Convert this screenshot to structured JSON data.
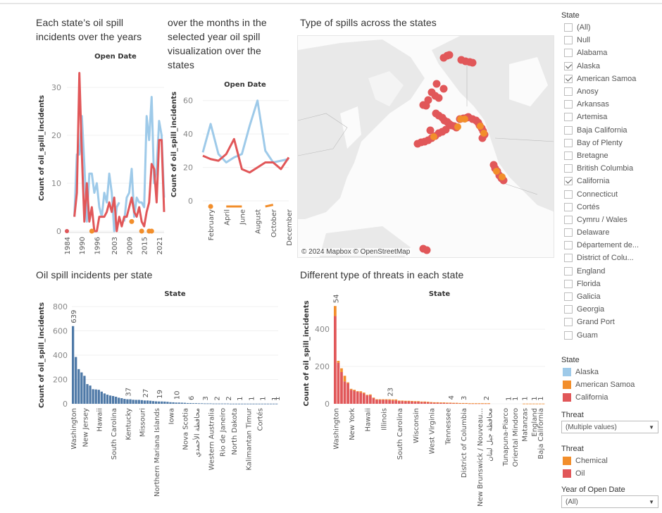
{
  "titles": {
    "yearly": [
      "Each state’s oil spill",
      "incidents over the years"
    ],
    "monthly": [
      "over the months in the",
      "selected year oil spill",
      "visualization over the",
      "states"
    ],
    "map": "Type of spills across the states",
    "per_state": "Oil spill incidents per state",
    "threats": "Different type of threats in each state"
  },
  "map": {
    "credit": "© 2024 Mapbox  © OpenStreetMap"
  },
  "filters": {
    "state": {
      "label": "State",
      "items": [
        {
          "label": "(All)",
          "checked": false
        },
        {
          "label": "Null",
          "checked": false
        },
        {
          "label": "Alabama",
          "checked": false
        },
        {
          "label": "Alaska",
          "checked": true
        },
        {
          "label": "American Samoa",
          "checked": true
        },
        {
          "label": "Anosy",
          "checked": false
        },
        {
          "label": "Arkansas",
          "checked": false
        },
        {
          "label": "Artemisa",
          "checked": false
        },
        {
          "label": "Baja California",
          "checked": false
        },
        {
          "label": "Bay of Plenty",
          "checked": false
        },
        {
          "label": "Bretagne",
          "checked": false
        },
        {
          "label": "British Columbia",
          "checked": false
        },
        {
          "label": "California",
          "checked": true
        },
        {
          "label": "Connecticut",
          "checked": false
        },
        {
          "label": "Cortés",
          "checked": false
        },
        {
          "label": "Cymru / Wales",
          "checked": false
        },
        {
          "label": "Delaware",
          "checked": false
        },
        {
          "label": "Département de...",
          "checked": false
        },
        {
          "label": "District of Colu...",
          "checked": false
        },
        {
          "label": "England",
          "checked": false
        },
        {
          "label": "Florida",
          "checked": false
        },
        {
          "label": "Galicia",
          "checked": false
        },
        {
          "label": "Georgia",
          "checked": false
        },
        {
          "label": "Grand Port",
          "checked": false
        },
        {
          "label": "Guam",
          "checked": false
        }
      ]
    },
    "state_legend": {
      "label": "State",
      "items": [
        {
          "label": "Alaska",
          "color": "#9ecae9"
        },
        {
          "label": "American Samoa",
          "color": "#f28e2b"
        },
        {
          "label": "California",
          "color": "#e15759"
        }
      ]
    },
    "threat": {
      "label": "Threat",
      "value": "(Multiple values)"
    },
    "threat_legend": {
      "label": "Threat",
      "items": [
        {
          "label": "Chemical",
          "color": "#f28e2b"
        },
        {
          "label": "Oil",
          "color": "#e15759"
        }
      ]
    },
    "year": {
      "label": "Year of Open Date",
      "value": "(All)"
    }
  },
  "chart_data": [
    {
      "id": "yearly",
      "type": "line",
      "title": "Open Date",
      "xlabel": "",
      "ylabel": "Count of oil_spill_incidents",
      "x": [
        1984,
        1985,
        1986,
        1987,
        1988,
        1989,
        1990,
        1991,
        1992,
        1993,
        1994,
        1995,
        1996,
        1997,
        1998,
        1999,
        2000,
        2001,
        2002,
        2003,
        2004,
        2005,
        2006,
        2007,
        2008,
        2009,
        2010,
        2011,
        2012,
        2013,
        2014,
        2015,
        2016,
        2017,
        2018,
        2019,
        2020,
        2021,
        2022,
        2023
      ],
      "xticks": [
        "1984",
        "1990",
        "1996",
        "2003",
        "2009",
        "2015",
        "2021"
      ],
      "yticks": [
        0,
        10,
        20,
        30
      ],
      "ylim": [
        0,
        35
      ],
      "series": [
        {
          "name": "Alaska",
          "color": "#9ecae9",
          "values": [
            0,
            null,
            null,
            3,
            16,
            16,
            24,
            14,
            2,
            12,
            12,
            8,
            10,
            5,
            3,
            8,
            6,
            12,
            8,
            0,
            5,
            6,
            null,
            2,
            7,
            8,
            13,
            3,
            7,
            6,
            6,
            5,
            24,
            19,
            28,
            10,
            13,
            23,
            20,
            7
          ]
        },
        {
          "name": "California",
          "color": "#e15759",
          "values": [
            0,
            null,
            null,
            3,
            8,
            33,
            16,
            2,
            10,
            2,
            5,
            0,
            0,
            3,
            3,
            3,
            4,
            6,
            4,
            7,
            0,
            3,
            1,
            3,
            3,
            5,
            7,
            4,
            3,
            5,
            2,
            1,
            4,
            6,
            14,
            13,
            6,
            19,
            19,
            4
          ]
        },
        {
          "name": "American Samoa",
          "color": "#f28e2b",
          "points": [
            [
              1994,
              0
            ],
            [
              2010,
              2
            ],
            [
              2014,
              0
            ],
            [
              2017,
              0
            ],
            [
              2018,
              0
            ]
          ]
        }
      ]
    },
    {
      "id": "monthly",
      "type": "line",
      "title": "Open Date",
      "ylabel": "Count of oil_spill_incidents",
      "x": [
        "January",
        "February",
        "March",
        "April",
        "May",
        "June",
        "July",
        "August",
        "September",
        "October",
        "November",
        "December"
      ],
      "xticks": [
        "February",
        "April",
        "June",
        "August",
        "October",
        "December"
      ],
      "yticks": [
        0,
        20,
        40,
        60
      ],
      "ylim": [
        0,
        62
      ],
      "series": [
        {
          "name": "Alaska",
          "color": "#9ecae9",
          "values": [
            29,
            46,
            28,
            23,
            26,
            28,
            45,
            60,
            30,
            23,
            24,
            25
          ]
        },
        {
          "name": "California",
          "color": "#e15759",
          "values": [
            27,
            25,
            24,
            28,
            37,
            19,
            17,
            20,
            23,
            23,
            19,
            26
          ]
        },
        {
          "name": "American Samoa",
          "color": "#f28e2b",
          "values": [
            null,
            0,
            null,
            0,
            0,
            0,
            null,
            null,
            0,
            1,
            null,
            null
          ]
        }
      ]
    },
    {
      "id": "per_state",
      "type": "bar",
      "title": "State",
      "ylabel": "Count of oil_spill_incidents",
      "yticks": [
        0,
        200,
        400,
        600,
        800
      ],
      "ylim": [
        0,
        800
      ],
      "color": "#4e79a7",
      "values": [
        639,
        385,
        285,
        258,
        230,
        162,
        150,
        120,
        118,
        115,
        100,
        85,
        75,
        68,
        64,
        58,
        50,
        46,
        40,
        37,
        37,
        33,
        32,
        32,
        30,
        27,
        27,
        25,
        22,
        20,
        19,
        19,
        18,
        16,
        13,
        12,
        10,
        10,
        9,
        8,
        6,
        6,
        5,
        5,
        4,
        4,
        3,
        3,
        3,
        2,
        2,
        2,
        2,
        2,
        2,
        1,
        1,
        1,
        1,
        1,
        1,
        1,
        1,
        1,
        1,
        1,
        1,
        1,
        1,
        1,
        1,
        1
      ],
      "data_labels": [
        {
          "index": 0,
          "text": "639"
        },
        {
          "index": 19,
          "text": "37"
        },
        {
          "index": 25,
          "text": "27"
        },
        {
          "index": 30,
          "text": "19"
        },
        {
          "index": 36,
          "text": "10"
        },
        {
          "index": 41,
          "text": "6"
        },
        {
          "index": 46,
          "text": "3"
        },
        {
          "index": 50,
          "text": "2"
        },
        {
          "index": 54,
          "text": "2"
        },
        {
          "index": 58,
          "text": "1"
        },
        {
          "index": 62,
          "text": "1"
        },
        {
          "index": 66,
          "text": "1"
        },
        {
          "index": 70,
          "text": "1"
        },
        {
          "index": 71,
          "text": "1"
        }
      ],
      "xticks": [
        {
          "index": 0,
          "text": "Washington"
        },
        {
          "index": 4,
          "text": "New Jersey"
        },
        {
          "index": 9,
          "text": "Hawaii"
        },
        {
          "index": 14,
          "text": "South Carolina"
        },
        {
          "index": 19,
          "text": "Kentucky"
        },
        {
          "index": 24,
          "text": "Missouri"
        },
        {
          "index": 29,
          "text": "Northern Mariana Islands"
        },
        {
          "index": 34,
          "text": "Iowa"
        },
        {
          "index": 39,
          "text": "Nova Scotia"
        },
        {
          "index": 43,
          "text": "محافظة الأحمدي"
        },
        {
          "index": 48,
          "text": "Western Australia"
        },
        {
          "index": 52,
          "text": "Rio de Janeiro"
        },
        {
          "index": 56,
          "text": "North Dakota"
        },
        {
          "index": 61,
          "text": "Kalimantan Timur"
        },
        {
          "index": 65,
          "text": "Cortés"
        }
      ]
    },
    {
      "id": "threats",
      "type": "bar",
      "stacked": true,
      "title": "State",
      "ylabel": "Count of oil_spill_incidents",
      "yticks": [
        0,
        200,
        400
      ],
      "ylim": [
        0,
        540
      ],
      "series": [
        {
          "name": "Oil",
          "color": "#e15759",
          "values": [
            470,
            220,
            170,
            120,
            110,
            75,
            70,
            65,
            60,
            55,
            45,
            45,
            30,
            22,
            22,
            22,
            22,
            20,
            18,
            18,
            15,
            15,
            14,
            14,
            13,
            12,
            12,
            10,
            10,
            9,
            8,
            7,
            7,
            6,
            6,
            5,
            5,
            4,
            4,
            3,
            3,
            3,
            2,
            2,
            2,
            2,
            2,
            2,
            2,
            0,
            0,
            0,
            0,
            0,
            0,
            0,
            0,
            0,
            0,
            0,
            0,
            0,
            0,
            0,
            0,
            0
          ]
        },
        {
          "name": "Chemical",
          "color": "#f28e2b",
          "values": [
            54,
            10,
            20,
            30,
            5,
            5,
            5,
            3,
            7,
            5,
            3,
            5,
            3,
            2,
            2,
            2,
            2,
            4,
            5,
            5,
            2,
            2,
            2,
            2,
            2,
            2,
            2,
            2,
            2,
            2,
            1,
            1,
            1,
            1,
            1,
            1,
            1,
            1,
            1,
            1,
            1,
            1,
            1,
            1,
            1,
            1,
            1,
            1,
            1,
            0,
            0,
            0,
            0,
            0,
            0,
            0,
            0,
            0,
            0,
            1,
            1,
            1,
            1,
            1,
            1,
            1
          ]
        }
      ],
      "data_labels": [
        {
          "index": 0,
          "text": "54"
        },
        {
          "index": 17,
          "text": "23"
        },
        {
          "index": 36,
          "text": "4"
        },
        {
          "index": 40,
          "text": "3"
        },
        {
          "index": 47,
          "text": "2"
        },
        {
          "index": 54,
          "text": "1"
        },
        {
          "index": 56,
          "text": "1"
        },
        {
          "index": 59,
          "text": "1"
        },
        {
          "index": 62,
          "text": "1"
        },
        {
          "index": 64,
          "text": "1"
        }
      ],
      "xticks": [
        {
          "index": 0,
          "text": "Washington"
        },
        {
          "index": 5,
          "text": "New York"
        },
        {
          "index": 10,
          "text": "Hawaii"
        },
        {
          "index": 15,
          "text": "Illinois"
        },
        {
          "index": 20,
          "text": "South Carolina"
        },
        {
          "index": 25,
          "text": "Wisconsin"
        },
        {
          "index": 30,
          "text": "West Virginia"
        },
        {
          "index": 35,
          "text": "Tennessee"
        },
        {
          "index": 40,
          "text": "District of Columbia"
        },
        {
          "index": 45,
          "text": "New Brunswick / Nouveau..."
        },
        {
          "index": 48,
          "text": "محافظة جبل لبنان"
        },
        {
          "index": 53,
          "text": "Tunapuna-Piarco"
        },
        {
          "index": 56,
          "text": "Oriental Mindoro"
        },
        {
          "index": 59,
          "text": "Matanzas"
        },
        {
          "index": 62,
          "text": "England"
        },
        {
          "index": 64,
          "text": "Baja California"
        }
      ]
    }
  ],
  "map_points": {
    "oil_color": "#e15759",
    "chemical_color": "#f28e2b"
  }
}
